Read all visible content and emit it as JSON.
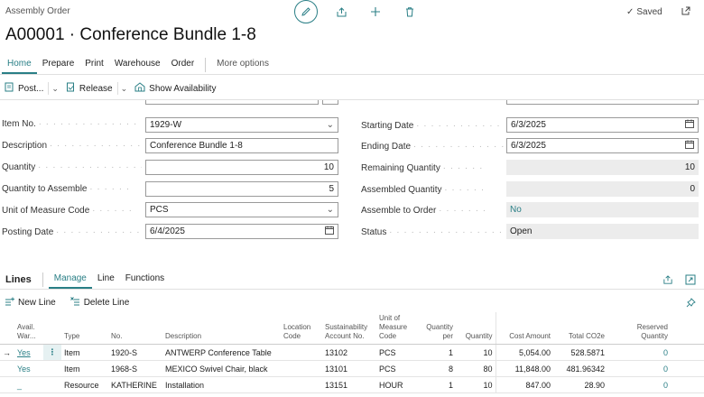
{
  "header": {
    "breadcrumb": "Assembly Order",
    "title": "A00001 · Conference Bundle 1-8",
    "saved": "Saved"
  },
  "tabs": [
    {
      "label": "Home"
    },
    {
      "label": "Prepare"
    },
    {
      "label": "Print"
    },
    {
      "label": "Warehouse"
    },
    {
      "label": "Order"
    }
  ],
  "more_options": "More options",
  "actions": {
    "post": "Post...",
    "release": "Release",
    "show_availability": "Show Availability"
  },
  "left_fields": [
    {
      "label": "Item No.",
      "value": "1929-W",
      "kind": "select"
    },
    {
      "label": "Description",
      "value": "Conference Bundle 1-8",
      "kind": "text"
    },
    {
      "label": "Quantity",
      "value": "10",
      "kind": "number"
    },
    {
      "label": "Quantity to Assemble",
      "value": "5",
      "kind": "number"
    },
    {
      "label": "Unit of Measure Code",
      "value": "PCS",
      "kind": "select"
    },
    {
      "label": "Posting Date",
      "value": "6/4/2025",
      "kind": "date"
    }
  ],
  "right_fields": [
    {
      "label": "Starting Date",
      "value": "6/3/2025",
      "kind": "date"
    },
    {
      "label": "Ending Date",
      "value": "6/3/2025",
      "kind": "date"
    },
    {
      "label": "Remaining Quantity",
      "value": "10",
      "kind": "readonly-number"
    },
    {
      "label": "Assembled Quantity",
      "value": "0",
      "kind": "readonly-number"
    },
    {
      "label": "Assemble to Order",
      "value": "No",
      "kind": "readonly-link"
    },
    {
      "label": "Status",
      "value": "Open",
      "kind": "readonly"
    }
  ],
  "lines": {
    "label": "Lines",
    "tabs": [
      "Manage",
      "Line",
      "Functions"
    ],
    "new_line": "New Line",
    "delete_line": "Delete Line",
    "columns": {
      "avail": "Avail. War...",
      "type": "Type",
      "no": "No.",
      "description": "Description",
      "location": "Location Code",
      "sustain": "Sustainability Account No.",
      "uom": "Unit of Measure Code",
      "qty_per": "Quantity per",
      "quantity": "Quantity",
      "cost": "Cost Amount",
      "co2": "Total CO2e",
      "reserved": "Reserved Quantity"
    },
    "rows": [
      {
        "avail": "Yes",
        "type": "Item",
        "no": "1920-S",
        "description": "ANTWERP Conference Table",
        "location": "",
        "sustain": "13102",
        "uom": "PCS",
        "qty_per": "1",
        "quantity": "10",
        "cost": "5,054.00",
        "co2": "528.5871",
        "reserved": "0"
      },
      {
        "avail": "Yes",
        "type": "Item",
        "no": "1968-S",
        "description": "MEXICO Swivel Chair, black",
        "location": "",
        "sustain": "13101",
        "uom": "PCS",
        "qty_per": "8",
        "quantity": "80",
        "cost": "11,848.00",
        "co2": "481.96342",
        "reserved": "0"
      },
      {
        "avail": "_",
        "type": "Resource",
        "no": "KATHERINE",
        "description": "Installation",
        "location": "",
        "sustain": "13151",
        "uom": "HOUR",
        "qty_per": "1",
        "quantity": "10",
        "cost": "847.00",
        "co2": "28.90",
        "reserved": "0"
      }
    ]
  }
}
